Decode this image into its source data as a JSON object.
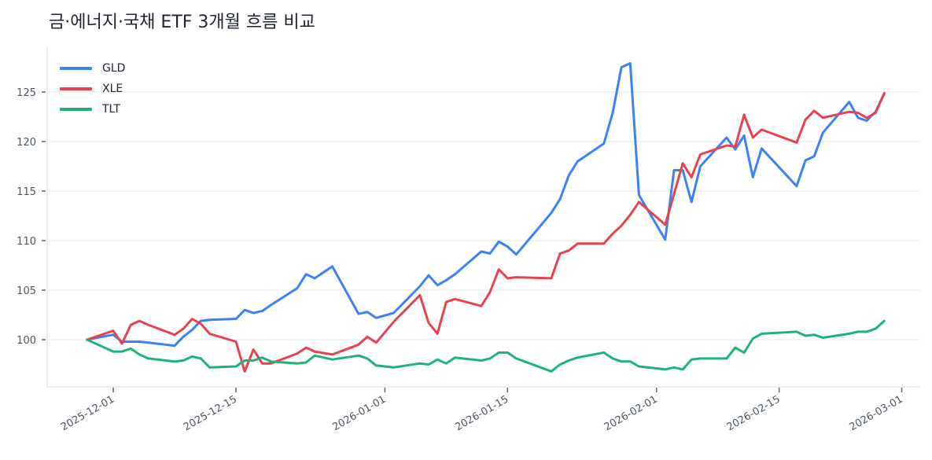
{
  "chart_data": {
    "type": "line",
    "title": "금·에너지·국채 ETF 3개월 흐름 비교",
    "xlabel": "",
    "ylabel": "",
    "ylim": [
      95.3,
      129.3
    ],
    "yticks": [
      100,
      105,
      110,
      115,
      120,
      125
    ],
    "xticks": [
      "2025-12-01",
      "2025-12-15",
      "2026-01-01",
      "2026-01-15",
      "2026-02-01",
      "2026-02-15",
      "2026-03-01"
    ],
    "xtick_days": [
      0,
      14,
      31,
      45,
      62,
      76,
      90
    ],
    "x_origin": "2025-12-01",
    "xlim_days": [
      -7.5,
      92.4
    ],
    "grid": "horizontal",
    "legend_position": "upper left",
    "x_days": [
      -3,
      0,
      1,
      2,
      3,
      4,
      7,
      8,
      9,
      10,
      11,
      14,
      15,
      16,
      17,
      18,
      21,
      22,
      23,
      25,
      28,
      29,
      30,
      32,
      35,
      36,
      37,
      38,
      39,
      42,
      43,
      44,
      45,
      46,
      50,
      51,
      52,
      53,
      56,
      57,
      58,
      59,
      60,
      63,
      64,
      65,
      66,
      67,
      70,
      71,
      72,
      73,
      74,
      78,
      79,
      80,
      81,
      84,
      85,
      86,
      87,
      88
    ],
    "series": [
      {
        "name": "GLD",
        "color": "#3b82f6",
        "values": [
          100.0,
          100.5,
          99.8,
          99.8,
          99.8,
          99.7,
          99.4,
          100.3,
          101.0,
          101.9,
          102.0,
          102.1,
          103.0,
          102.7,
          102.9,
          103.5,
          105.2,
          106.6,
          106.2,
          107.4,
          102.6,
          102.8,
          102.2,
          102.7,
          105.4,
          106.5,
          105.5,
          106.0,
          106.6,
          108.9,
          108.7,
          109.9,
          109.4,
          108.6,
          112.8,
          114.2,
          116.6,
          118.0,
          119.8,
          122.9,
          127.5,
          127.9,
          114.6,
          110.1,
          117.1,
          117.1,
          113.9,
          117.5,
          120.4,
          119.2,
          120.6,
          116.4,
          119.3,
          115.5,
          118.1,
          118.5,
          120.9,
          124.0,
          122.4,
          122.1,
          123.0,
          124.8
        ]
      },
      {
        "name": "XLE",
        "color": "#e8424f",
        "values": [
          100.0,
          100.9,
          99.6,
          101.5,
          101.9,
          101.5,
          100.5,
          101.1,
          102.1,
          101.6,
          100.6,
          99.8,
          96.8,
          99.0,
          97.6,
          97.6,
          98.6,
          99.2,
          98.8,
          98.5,
          99.5,
          100.3,
          99.7,
          101.8,
          104.5,
          101.7,
          100.6,
          103.8,
          104.1,
          103.4,
          104.8,
          107.1,
          106.2,
          106.3,
          106.2,
          108.7,
          109.0,
          109.7,
          109.7,
          110.7,
          111.5,
          112.6,
          113.9,
          111.6,
          114.7,
          117.8,
          116.4,
          118.7,
          119.6,
          119.5,
          122.7,
          120.4,
          121.2,
          119.9,
          122.2,
          123.1,
          122.4,
          123.0,
          122.9,
          122.4,
          122.9,
          124.9
        ]
      },
      {
        "name": "TLT",
        "color": "#1fb377",
        "values": [
          100.0,
          98.8,
          98.8,
          99.1,
          98.5,
          98.1,
          97.8,
          97.9,
          98.3,
          98.1,
          97.2,
          97.3,
          97.9,
          97.9,
          98.2,
          97.8,
          97.6,
          97.7,
          98.4,
          98.0,
          98.4,
          98.1,
          97.4,
          97.2,
          97.6,
          97.5,
          98.0,
          97.6,
          98.2,
          97.9,
          98.1,
          98.7,
          98.7,
          98.1,
          96.8,
          97.5,
          97.9,
          98.2,
          98.7,
          98.1,
          97.8,
          97.8,
          97.3,
          97.0,
          97.2,
          97.0,
          98.0,
          98.1,
          98.1,
          99.2,
          98.7,
          100.1,
          100.6,
          100.8,
          100.4,
          100.5,
          100.2,
          100.6,
          100.8,
          100.8,
          101.1,
          101.9
        ]
      }
    ]
  },
  "header": {
    "title": "금·에너지·국채 ETF 3개월 흐름 비교"
  },
  "legend": [
    {
      "label": "GLD",
      "color": "#3b82f6"
    },
    {
      "label": "XLE",
      "color": "#e8424f"
    },
    {
      "label": "TLT",
      "color": "#1fb377"
    }
  ]
}
